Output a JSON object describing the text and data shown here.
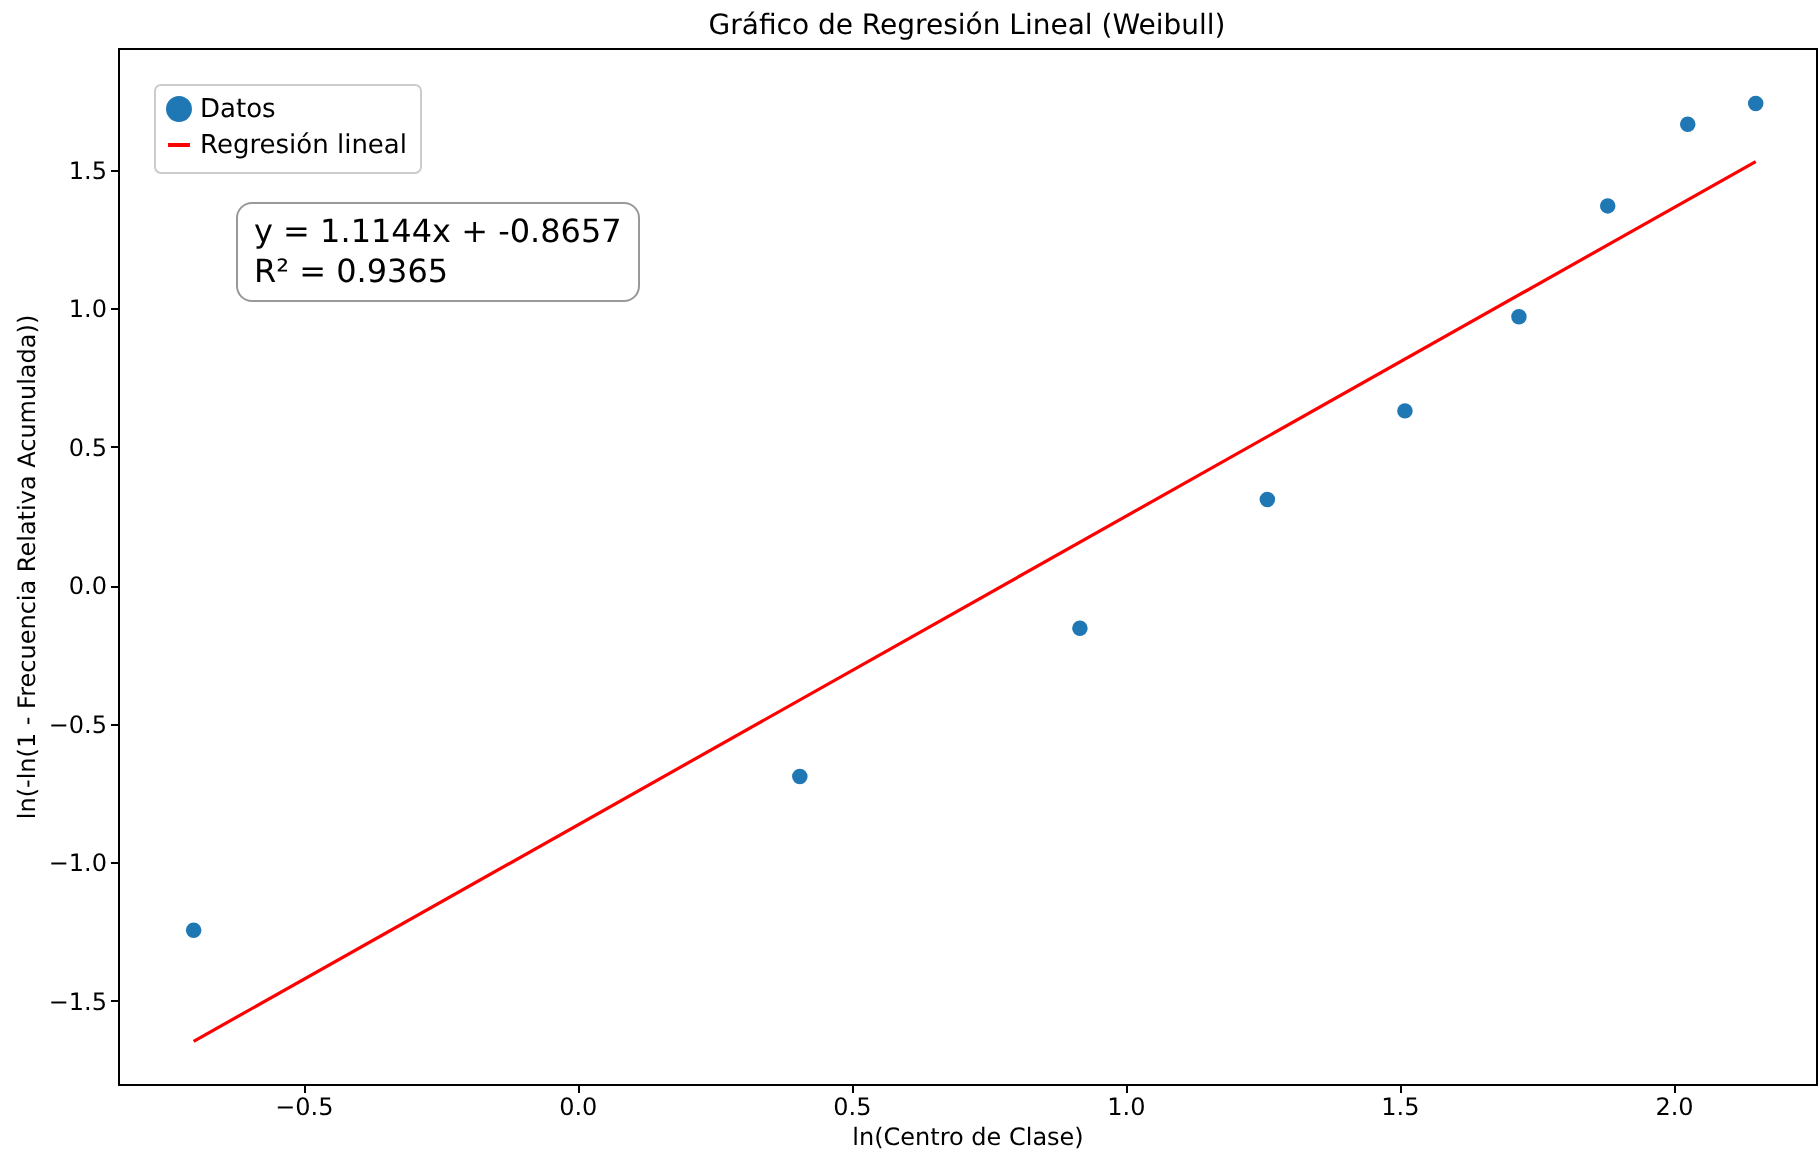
{
  "chart_data": {
    "type": "scatter",
    "title": "Gráfico de Regresión Lineal (Weibull)",
    "xlabel": "ln(Centro de Clase)",
    "ylabel": "ln(-ln(1 - Frecuencia Relativa Acumulada))",
    "series": [
      {
        "name": "Datos",
        "type": "scatter",
        "color": "#1f77b4",
        "marker": "circle",
        "x": [
          -0.7,
          0.406,
          0.917,
          1.259,
          1.51,
          1.718,
          1.88,
          2.026,
          2.15
        ],
        "values": [
          -1.245,
          -0.69,
          -0.155,
          0.31,
          0.63,
          0.97,
          1.37,
          1.665,
          1.74
        ]
      },
      {
        "name": "Regresión lineal",
        "type": "line",
        "color": "#ff0000",
        "line_style": "solid",
        "x": [
          -0.7,
          2.15
        ],
        "values": [
          -1.646,
          1.53
        ]
      }
    ],
    "annotations": [
      "y = 1.1144x + -0.8657",
      "R² = 0.9365"
    ],
    "xlim": [
      -0.838,
      2.26
    ],
    "ylim": [
      -1.8,
      1.94
    ],
    "xticks": [
      {
        "value": -0.5,
        "label": "−0.5"
      },
      {
        "value": 0,
        "label": "0.0"
      },
      0.5,
      {
        "value": 1,
        "label": "1.0"
      },
      1.5,
      {
        "value": 2,
        "label": "2.0"
      }
    ],
    "yticks": [
      {
        "value": -1.5,
        "label": "−1.5"
      },
      {
        "value": -1,
        "label": "−1.0"
      },
      {
        "value": -0.5,
        "label": "−0.5"
      },
      {
        "value": 0,
        "label": "0.0"
      },
      0.5,
      {
        "value": 1,
        "label": "1.0"
      },
      1.5
    ],
    "grid": false,
    "legend": "top left"
  }
}
